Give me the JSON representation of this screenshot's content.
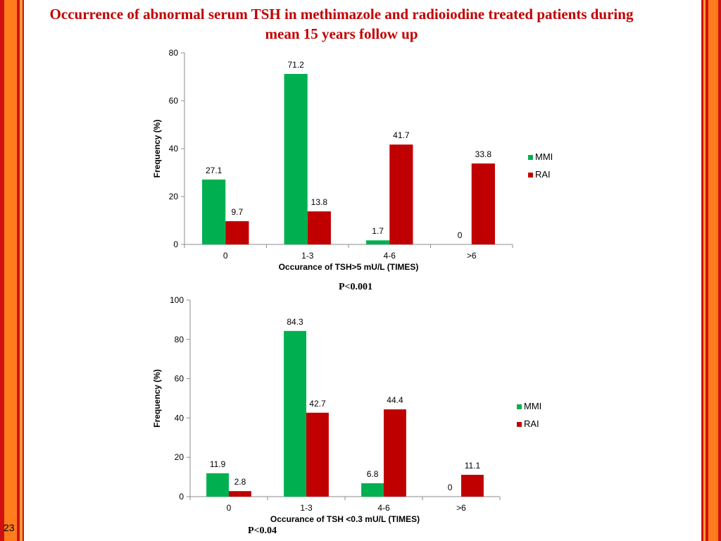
{
  "slide": {
    "title": "Occurrence of abnormal serum TSH in methimazole and radioiodine treated patients during  mean 15 years follow up",
    "page_number": "23",
    "p_value_1": "P<0.001",
    "p_value_2": "P<0.04"
  },
  "colors": {
    "mmi": "#00b050",
    "rai": "#c00000",
    "title": "#c00000",
    "border_orange": "#ff7c1c",
    "border_red": "#d01010"
  },
  "chart_data": [
    {
      "type": "bar",
      "categories": [
        "0",
        "1-3",
        "4-6",
        ">6"
      ],
      "series": [
        {
          "name": "MMI",
          "values": [
            27.1,
            71.2,
            1.7,
            0
          ]
        },
        {
          "name": "RAI",
          "values": [
            9.7,
            13.8,
            41.7,
            33.8
          ]
        }
      ],
      "value_labels": [
        [
          "27.1",
          "71.2",
          "1.7",
          "0"
        ],
        [
          "9.7",
          "13.8",
          "41.7",
          "33.8"
        ]
      ],
      "xlabel": "Occurance of TSH>5 mU/L (TIMES)",
      "ylabel": "Frequency (%)",
      "ylim": [
        0,
        80
      ],
      "yticks": [
        0,
        20,
        40,
        60,
        80
      ],
      "ytick_labels": [
        "0",
        "20",
        "40",
        "60",
        "80"
      ],
      "grid": false,
      "legend": "right"
    },
    {
      "type": "bar",
      "categories": [
        "0",
        "1-3",
        "4-6",
        ">6"
      ],
      "series": [
        {
          "name": "MMI",
          "values": [
            11.9,
            84.3,
            6.8,
            0
          ]
        },
        {
          "name": "RAI",
          "values": [
            2.8,
            42.7,
            44.4,
            11.1
          ]
        }
      ],
      "value_labels": [
        [
          "11.9",
          "84.3",
          "6.8",
          "0"
        ],
        [
          "2.8",
          "42.7",
          "44.4",
          "11.1"
        ]
      ],
      "xlabel": "Occurance of TSH <0.3 mU/L (TIMES)",
      "ylabel": "Frequency (%)",
      "ylim": [
        0,
        100
      ],
      "yticks": [
        0,
        20,
        40,
        60,
        80,
        100
      ],
      "ytick_labels": [
        "0",
        "20",
        "40",
        "60",
        "80",
        "100"
      ],
      "grid": false,
      "legend": "right"
    }
  ]
}
